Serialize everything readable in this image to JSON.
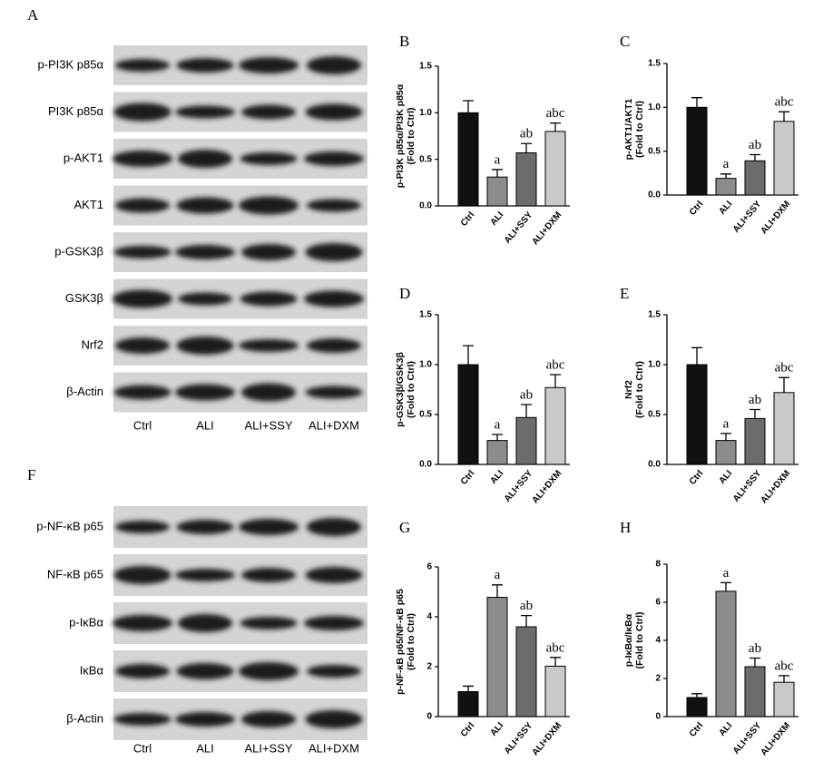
{
  "blots": [
    {
      "panel": "A",
      "rows": [
        "p-PI3K p85α",
        "PI3K p85α",
        "p-AKT1",
        "AKT1",
        "p-GSK3β",
        "GSK3β",
        "Nrf2",
        "β-Actin"
      ],
      "columns": [
        "Ctrl",
        "ALI",
        "ALI+SSY",
        "ALI+DXM"
      ]
    },
    {
      "panel": "F",
      "rows": [
        "p-NF-κB p65",
        "NF-κB p65",
        "p-IκBα",
        "IκBα",
        "β-Actin"
      ],
      "columns": [
        "Ctrl",
        "ALI",
        "ALI+SSY",
        "ALI+DXM"
      ]
    }
  ],
  "chart_data": [
    {
      "type": "bar",
      "panel": "B",
      "ylabel": [
        "p-PI3K p85α/PI3K p85α",
        "(Fold to Ctrl)"
      ],
      "categories": [
        "Ctrl",
        "ALI",
        "ALI+SSY",
        "ALI+DXM"
      ],
      "colors": [
        "#111111",
        "#8c8c8c",
        "#6c6c6c",
        "#c9c9c9"
      ],
      "values": [
        1.0,
        0.31,
        0.57,
        0.8
      ],
      "errors": [
        0.13,
        0.08,
        0.1,
        0.09
      ],
      "value_labels": [
        null,
        "a",
        "ab",
        "abc"
      ],
      "ylim": [
        0,
        1.5
      ],
      "yticks": [
        {
          "value": 0,
          "label": "0.0"
        },
        {
          "value": 0.5,
          "label": "0.5"
        },
        {
          "value": 1,
          "label": "1.0"
        },
        {
          "value": 1.5,
          "label": "1.5"
        }
      ]
    },
    {
      "type": "bar",
      "panel": "C",
      "ylabel": [
        "p-AKT1/AKT1",
        "(Fold to Ctrl)"
      ],
      "categories": [
        "Ctrl",
        "ALI",
        "ALI+SSY",
        "ALI+DXM"
      ],
      "colors": [
        "#111111",
        "#8c8c8c",
        "#6c6c6c",
        "#c9c9c9"
      ],
      "values": [
        1.0,
        0.19,
        0.39,
        0.84
      ],
      "errors": [
        0.11,
        0.05,
        0.07,
        0.11
      ],
      "value_labels": [
        null,
        "a",
        "ab",
        "abc"
      ],
      "ylim": [
        0,
        1.5
      ],
      "yticks": [
        {
          "value": 0,
          "label": "0.0"
        },
        {
          "value": 0.5,
          "label": "0.5"
        },
        {
          "value": 1,
          "label": "1.0"
        },
        {
          "value": 1.5,
          "label": "1.5"
        }
      ]
    },
    {
      "type": "bar",
      "panel": "D",
      "ylabel": [
        "p-GSK3β/GSK3β",
        "(Fold to Ctrl)"
      ],
      "categories": [
        "Ctrl",
        "ALI",
        "ALI+SSY",
        "ALI+DXM"
      ],
      "colors": [
        "#111111",
        "#8c8c8c",
        "#6c6c6c",
        "#c9c9c9"
      ],
      "values": [
        1.0,
        0.24,
        0.47,
        0.77
      ],
      "errors": [
        0.19,
        0.06,
        0.13,
        0.13
      ],
      "value_labels": [
        null,
        "a",
        "ab",
        "abc"
      ],
      "ylim": [
        0,
        1.5
      ],
      "yticks": [
        {
          "value": 0,
          "label": "0.0"
        },
        {
          "value": 0.5,
          "label": "0.5"
        },
        {
          "value": 1,
          "label": "1.0"
        },
        {
          "value": 1.5,
          "label": "1.5"
        }
      ]
    },
    {
      "type": "bar",
      "panel": "E",
      "ylabel": [
        "Nrf2",
        "(Fold to Ctrl)"
      ],
      "categories": [
        "Ctrl",
        "ALI",
        "ALI+SSY",
        "ALI+DXM"
      ],
      "colors": [
        "#111111",
        "#8c8c8c",
        "#6c6c6c",
        "#c9c9c9"
      ],
      "values": [
        1.0,
        0.24,
        0.46,
        0.72
      ],
      "errors": [
        0.17,
        0.07,
        0.09,
        0.15
      ],
      "value_labels": [
        null,
        "a",
        "ab",
        "abc"
      ],
      "ylim": [
        0,
        1.5
      ],
      "yticks": [
        {
          "value": 0,
          "label": "0.0"
        },
        {
          "value": 0.5,
          "label": "0.5"
        },
        {
          "value": 1,
          "label": "1.0"
        },
        {
          "value": 1.5,
          "label": "1.5"
        }
      ]
    },
    {
      "type": "bar",
      "panel": "G",
      "ylabel": [
        "p-NF-κB p65/NF-κB p65",
        "(Fold to Ctrl)"
      ],
      "categories": [
        "Ctrl",
        "ALI",
        "ALI+SSY",
        "ALI+DXM"
      ],
      "colors": [
        "#111111",
        "#8c8c8c",
        "#6c6c6c",
        "#c9c9c9"
      ],
      "values": [
        1.0,
        4.78,
        3.6,
        2.02
      ],
      "errors": [
        0.22,
        0.5,
        0.45,
        0.35
      ],
      "value_labels": [
        null,
        "a",
        "ab",
        "abc"
      ],
      "ylim": [
        0,
        6
      ],
      "yticks": [
        0,
        2,
        4,
        6
      ]
    },
    {
      "type": "bar",
      "panel": "H",
      "ylabel": [
        "p-IκBα/IκBα",
        "(Fold to Ctrl)"
      ],
      "categories": [
        "Ctrl",
        "ALI",
        "ALI+SSY",
        "ALI+DXM"
      ],
      "colors": [
        "#111111",
        "#8c8c8c",
        "#6c6c6c",
        "#c9c9c9"
      ],
      "values": [
        1.0,
        6.58,
        2.62,
        1.8
      ],
      "errors": [
        0.2,
        0.45,
        0.45,
        0.35
      ],
      "value_labels": [
        null,
        "a",
        "ab",
        "abc"
      ],
      "ylim": [
        0,
        8
      ],
      "yticks": [
        0,
        2,
        4,
        6,
        8
      ]
    }
  ]
}
